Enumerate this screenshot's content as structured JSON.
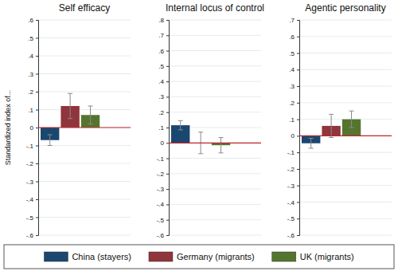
{
  "chart_data": [
    {
      "type": "bar",
      "title": "Self efficacy",
      "y_label": "Standardized index of...",
      "ylim": [
        -0.6,
        0.6
      ],
      "yticks": [
        {
          "value": -0.6,
          "label": "-.6"
        },
        {
          "value": -0.5,
          "label": "-.5"
        },
        {
          "value": -0.4,
          "label": "-.4"
        },
        {
          "value": -0.3,
          "label": "-.3"
        },
        {
          "value": -0.2,
          "label": "-.2"
        },
        {
          "value": -0.1,
          "label": "-.1"
        },
        0,
        {
          "value": 0.1,
          "label": ".1"
        },
        {
          "value": 0.2,
          "label": ".2"
        },
        {
          "value": 0.3,
          "label": ".3"
        },
        {
          "value": 0.4,
          "label": ".4"
        },
        {
          "value": 0.5,
          "label": ".5"
        },
        {
          "value": 0.6,
          "label": ".6"
        }
      ],
      "grid": true,
      "legend": "bottom",
      "series": [
        {
          "name": "China (stayers)",
          "color": "#1a476f",
          "values": [
            -0.07
          ],
          "errors": [
            0.03
          ]
        },
        {
          "name": "Germany (migrants)",
          "color": "#90353b",
          "values": [
            0.12
          ],
          "errors": [
            0.07
          ]
        },
        {
          "name": "UK (migrants)",
          "color": "#55752f",
          "values": [
            0.07
          ],
          "errors": [
            0.05
          ]
        }
      ]
    },
    {
      "type": "bar",
      "title": "Internal locus of control",
      "ylim": [
        -0.6,
        0.8
      ],
      "yticks": [
        {
          "value": -0.6,
          "label": "-.6"
        },
        {
          "value": -0.5,
          "label": "-.5"
        },
        {
          "value": -0.4,
          "label": "-.4"
        },
        {
          "value": -0.3,
          "label": "-.3"
        },
        {
          "value": -0.2,
          "label": "-.2"
        },
        {
          "value": -0.1,
          "label": "-.1"
        },
        0,
        {
          "value": 0.1,
          "label": ".1"
        },
        {
          "value": 0.2,
          "label": ".2"
        },
        {
          "value": 0.3,
          "label": ".3"
        },
        {
          "value": 0.4,
          "label": ".4"
        },
        {
          "value": 0.5,
          "label": ".5"
        },
        {
          "value": 0.6,
          "label": ".6"
        },
        {
          "value": 0.7,
          "label": ".7"
        },
        {
          "value": 0.8,
          "label": ".8"
        }
      ],
      "grid": true,
      "series": [
        {
          "color": "#1a476f",
          "values": [
            0.115
          ],
          "errors": [
            0.03
          ]
        },
        {
          "color": "#90353b",
          "values": [
            0
          ],
          "errors": [
            0.07
          ]
        },
        {
          "color": "#55752f",
          "values": [
            -0.015
          ],
          "errors": [
            0.05
          ]
        }
      ]
    },
    {
      "type": "bar",
      "title": "Agentic personality",
      "ylim": [
        -0.6,
        0.7
      ],
      "yticks": [
        {
          "value": -0.6,
          "label": "-.6"
        },
        {
          "value": -0.5,
          "label": "-.5"
        },
        {
          "value": -0.4,
          "label": "-.4"
        },
        {
          "value": -0.3,
          "label": "-.3"
        },
        {
          "value": -0.2,
          "label": "-.2"
        },
        {
          "value": -0.1,
          "label": "-.1"
        },
        0,
        {
          "value": 0.1,
          "label": ".1"
        },
        {
          "value": 0.2,
          "label": ".2"
        },
        {
          "value": 0.3,
          "label": ".3"
        },
        {
          "value": 0.4,
          "label": ".4"
        },
        {
          "value": 0.5,
          "label": ".5"
        },
        {
          "value": 0.6,
          "label": ".6"
        },
        {
          "value": 0.7,
          "label": ".7"
        }
      ],
      "grid": true,
      "series": [
        {
          "color": "#1a476f",
          "values": [
            -0.045
          ],
          "errors": [
            0.03
          ]
        },
        {
          "color": "#90353b",
          "values": [
            0.06
          ],
          "errors": [
            0.07
          ]
        },
        {
          "color": "#55752f",
          "values": [
            0.1
          ],
          "errors": [
            0.05
          ]
        }
      ]
    }
  ]
}
